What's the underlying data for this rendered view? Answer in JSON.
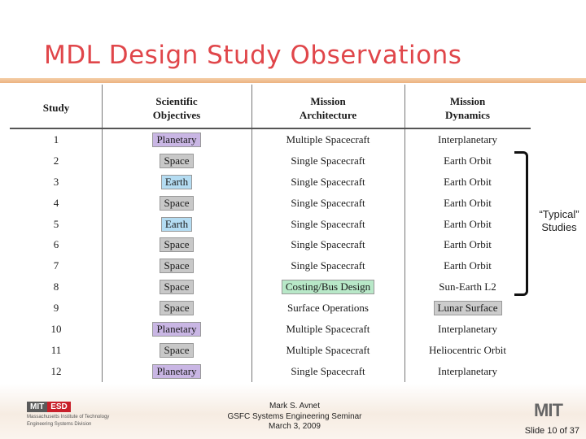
{
  "title": "MDL Design Study Observations",
  "colors": {
    "title": "#e0464a",
    "planetary": "#c9b6e4",
    "space": "#c8c8c8",
    "earth": "#b4dcf2",
    "costing": "#b8e8c8",
    "lunar": "#cccccc"
  },
  "table": {
    "headers": {
      "study": "Study",
      "objectives": "Scientific Objectives",
      "architecture": "Mission Architecture",
      "dynamics": "Mission Dynamics"
    },
    "rows": [
      {
        "study": "1",
        "objective": "Planetary",
        "architecture": "Multiple Spacecraft",
        "dynamics": "Interplanetary"
      },
      {
        "study": "2",
        "objective": "Space",
        "architecture": "Single Spacecraft",
        "dynamics": "Earth Orbit"
      },
      {
        "study": "3",
        "objective": "Earth",
        "architecture": "Single Spacecraft",
        "dynamics": "Earth Orbit"
      },
      {
        "study": "4",
        "objective": "Space",
        "architecture": "Single Spacecraft",
        "dynamics": "Earth Orbit"
      },
      {
        "study": "5",
        "objective": "Earth",
        "architecture": "Single Spacecraft",
        "dynamics": "Earth Orbit"
      },
      {
        "study": "6",
        "objective": "Space",
        "architecture": "Single Spacecraft",
        "dynamics": "Earth Orbit"
      },
      {
        "study": "7",
        "objective": "Space",
        "architecture": "Single Spacecraft",
        "dynamics": "Earth Orbit"
      },
      {
        "study": "8",
        "objective": "Space",
        "architecture": "Costing/Bus Design",
        "dynamics": "Sun-Earth L2"
      },
      {
        "study": "9",
        "objective": "Space",
        "architecture": "Surface Operations",
        "dynamics": "Lunar Surface"
      },
      {
        "study": "10",
        "objective": "Planetary",
        "architecture": "Multiple Spacecraft",
        "dynamics": "Interplanetary"
      },
      {
        "study": "11",
        "objective": "Space",
        "architecture": "Multiple Spacecraft",
        "dynamics": "Heliocentric Orbit"
      },
      {
        "study": "12",
        "objective": "Planetary",
        "architecture": "Single Spacecraft",
        "dynamics": "Interplanetary"
      }
    ]
  },
  "bracket_label": "“Typical” Studies",
  "footer": {
    "logo_mit": "MIT",
    "logo_esd": "ESD",
    "logo_line1": "Massachusetts Institute of Technology",
    "logo_line2": "Engineering Systems Division",
    "author": "Mark S. Avnet",
    "event": "GSFC Systems Engineering Seminar",
    "date": "March 3, 2009",
    "right_logo": "MIT",
    "slide_number": "Slide 10 of 37"
  }
}
